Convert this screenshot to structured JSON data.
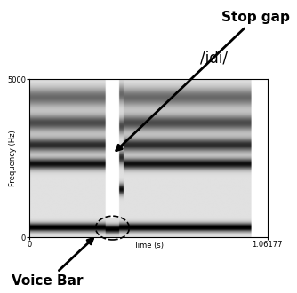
{
  "chart_data": {
    "type": "spectrogram",
    "title": "/idi/",
    "x_label": "Time (s)",
    "y_label": "Frequency (Hz)",
    "xlim": [
      0,
      1.06177
    ],
    "xticks": [
      0,
      1.06177
    ],
    "ylim": [
      0,
      5000
    ],
    "yticks": [
      0,
      5000
    ],
    "annotations": [
      "Stop gap",
      "Voice Bar"
    ],
    "segments": [
      {
        "start": 0.0,
        "end": 0.34,
        "formants": [
          300,
          2300,
          2900,
          3600,
          4400
        ]
      },
      {
        "start": 0.34,
        "end": 0.4,
        "formants": [
          250
        ]
      },
      {
        "start": 0.4,
        "end": 0.42,
        "formants": [
          300,
          1500,
          2500,
          3500,
          4500
        ]
      },
      {
        "start": 0.42,
        "end": 0.99,
        "formants": [
          300,
          2300,
          2900,
          3600,
          4400
        ]
      }
    ]
  }
}
